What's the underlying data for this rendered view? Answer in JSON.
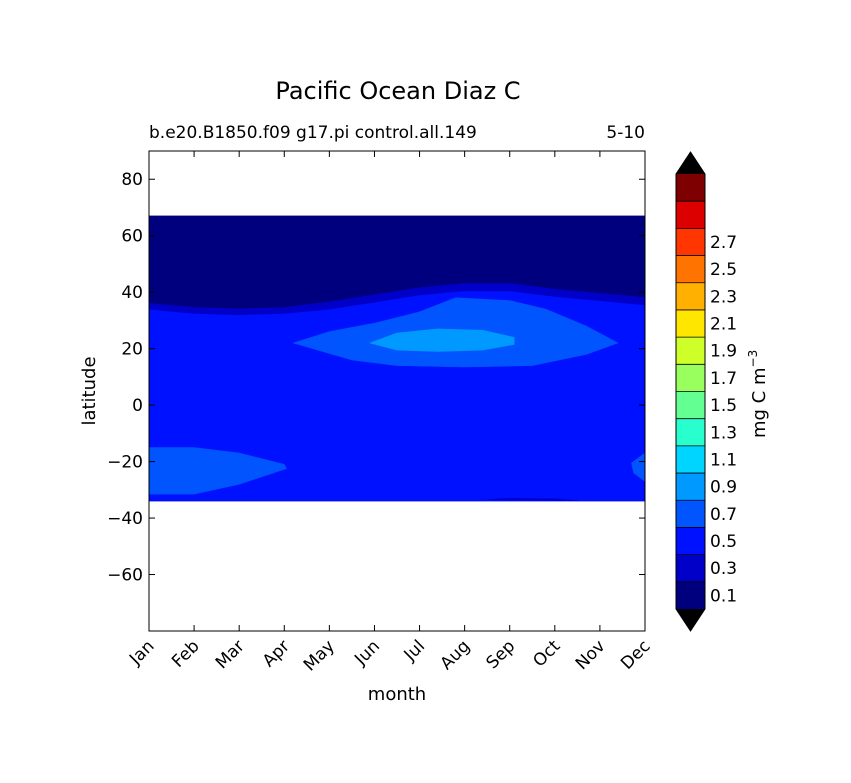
{
  "chart_data": {
    "type": "heatmap",
    "subtype": "filled-contour",
    "title": "Pacific Ocean Diaz C",
    "subtitle_left": "b.e20.B1850.f09 g17.pi control.all.149",
    "subtitle_right": "5-10",
    "xlabel": "month",
    "ylabel": "latitude",
    "x_categories": [
      "Jan",
      "Feb",
      "Mar",
      "Apr",
      "May",
      "Jun",
      "Jul",
      "Aug",
      "Sep",
      "Oct",
      "Nov",
      "Dec"
    ],
    "x_range": [
      1,
      12
    ],
    "y_range": [
      -80,
      90
    ],
    "y_ticks": [
      80,
      60,
      40,
      20,
      0,
      -20,
      -40,
      -60
    ],
    "grid": false,
    "data_lat_range": [
      -34,
      67
    ],
    "colorbar": {
      "label": "mg C m",
      "label_exponent": "−3",
      "extend": "both",
      "levels": [
        0,
        0.1,
        0.2,
        0.3,
        0.4,
        0.5,
        0.6,
        0.7,
        0.8,
        0.9,
        1.0,
        1.1,
        1.2,
        1.3,
        1.4,
        1.5,
        1.6,
        1.7,
        1.8,
        1.9,
        2.0,
        2.1,
        2.2,
        2.3,
        2.4,
        2.5,
        2.6,
        2.7,
        2.8
      ],
      "tick_labels": [
        "0.1",
        "0.3",
        "0.5",
        "0.7",
        "0.9",
        "1.1",
        "1.3",
        "1.5",
        "1.7",
        "1.9",
        "2.1",
        "2.3",
        "2.5",
        "2.7"
      ],
      "colors": [
        "#00007f",
        "#0000c8",
        "#0011ff",
        "#0055ff",
        "#0099ff",
        "#00d5ff",
        "#29ffce",
        "#64ff93",
        "#99ff5e",
        "#ceff29",
        "#ffe600",
        "#ffb000",
        "#ff7400",
        "#ff3600",
        "#dd0000",
        "#7f0000"
      ],
      "under_color": "#000000",
      "over_color": "#000000"
    },
    "regions": [
      {
        "name": "north-background",
        "value_band": "0.0-0.1",
        "color": "#00007f",
        "points": [
          [
            1,
            67
          ],
          [
            12,
            67
          ],
          [
            12,
            38
          ],
          [
            11,
            39.5
          ],
          [
            10,
            41
          ],
          [
            9,
            43
          ],
          [
            8,
            43
          ],
          [
            7,
            41.5
          ],
          [
            6,
            39
          ],
          [
            5,
            36.5
          ],
          [
            4,
            34.5
          ],
          [
            3,
            34
          ],
          [
            2,
            34.5
          ],
          [
            1,
            36
          ]
        ]
      },
      {
        "name": "main-band",
        "value_band": "0.2-0.3",
        "color": "#0011ff",
        "points": [
          [
            1,
            36
          ],
          [
            2,
            34.5
          ],
          [
            3,
            34
          ],
          [
            4,
            34.5
          ],
          [
            5,
            36.5
          ],
          [
            6,
            39
          ],
          [
            7,
            41.5
          ],
          [
            8,
            43
          ],
          [
            9,
            43
          ],
          [
            10,
            41
          ],
          [
            11,
            39.5
          ],
          [
            12,
            38
          ],
          [
            12,
            -34
          ],
          [
            1,
            -34
          ]
        ]
      },
      {
        "name": "dark-sliver-north",
        "value_band": "0.1-0.2",
        "color": "#0000c8",
        "points": [
          [
            1,
            36
          ],
          [
            2,
            34.5
          ],
          [
            3,
            34
          ],
          [
            4,
            34.5
          ],
          [
            5,
            36.5
          ],
          [
            6,
            39
          ],
          [
            7,
            41.5
          ],
          [
            8,
            43
          ],
          [
            9,
            43
          ],
          [
            10,
            41
          ],
          [
            11,
            39.5
          ],
          [
            12,
            38
          ],
          [
            12,
            35.5
          ],
          [
            11,
            37
          ],
          [
            10,
            38.5
          ],
          [
            9,
            40.5
          ],
          [
            8,
            40.5
          ],
          [
            7,
            39
          ],
          [
            6,
            36.5
          ],
          [
            5,
            34
          ],
          [
            4,
            32.5
          ],
          [
            3,
            32
          ],
          [
            2,
            32.5
          ],
          [
            1,
            34
          ]
        ]
      },
      {
        "name": "north-light-region",
        "value_band": "0.4-0.5",
        "color": "#0055ff",
        "points": [
          [
            4.2,
            22
          ],
          [
            5,
            26
          ],
          [
            6,
            29
          ],
          [
            7,
            33
          ],
          [
            7.8,
            38
          ],
          [
            9,
            37
          ],
          [
            9.8,
            34
          ],
          [
            10.7,
            28
          ],
          [
            11.4,
            22
          ],
          [
            10.7,
            18
          ],
          [
            9.5,
            14
          ],
          [
            8,
            13.5
          ],
          [
            6.5,
            14
          ],
          [
            5.5,
            16
          ]
        ]
      },
      {
        "name": "north-cyan-core",
        "value_band": "0.6-0.7",
        "color": "#0099ff",
        "points": [
          [
            5.9,
            22
          ],
          [
            6.5,
            25.5
          ],
          [
            7.4,
            27
          ],
          [
            8.4,
            26.5
          ],
          [
            9.1,
            24
          ],
          [
            9.1,
            21.5
          ],
          [
            8.4,
            19.5
          ],
          [
            7.4,
            19
          ],
          [
            6.5,
            19.5
          ]
        ]
      },
      {
        "name": "south-west-light-region",
        "value_band": "0.4-0.5",
        "color": "#0055ff",
        "points": [
          [
            1,
            -15
          ],
          [
            2,
            -15
          ],
          [
            3,
            -17
          ],
          [
            4,
            -21
          ],
          [
            4.05,
            -22.5
          ],
          [
            3,
            -28
          ],
          [
            2,
            -31.5
          ],
          [
            1,
            -31.5
          ]
        ]
      },
      {
        "name": "south-east-light-region",
        "value_band": "0.4-0.5",
        "color": "#0055ff",
        "points": [
          [
            12,
            -17
          ],
          [
            11.7,
            -20.5
          ],
          [
            11.75,
            -24
          ],
          [
            12,
            -27
          ]
        ]
      },
      {
        "name": "south-edge-sliver",
        "value_band": "0.1-0.2",
        "color": "#0000c8",
        "points": [
          [
            8.5,
            -33.5
          ],
          [
            9,
            -33
          ],
          [
            10,
            -33.2
          ],
          [
            10.5,
            -33.8
          ]
        ]
      }
    ]
  }
}
